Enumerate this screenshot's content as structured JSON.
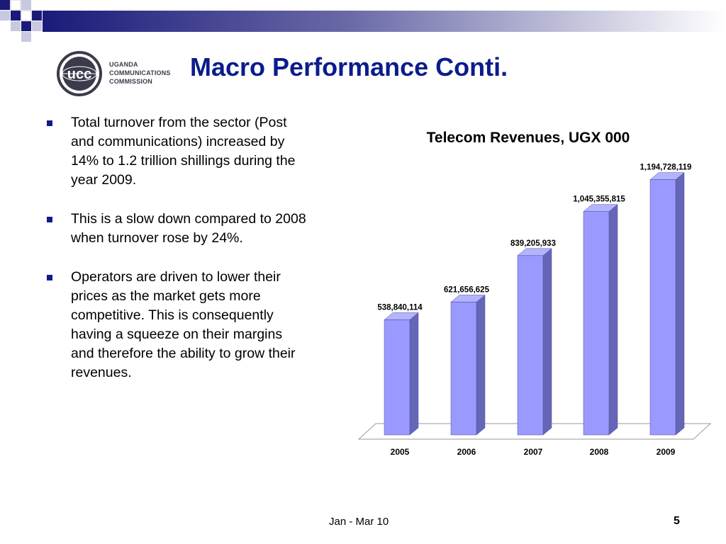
{
  "slide": {
    "title": "Macro Performance Conti.",
    "logo": {
      "mark": "ucc",
      "line1": "UGANDA",
      "line2": "COMMUNICATIONS",
      "line3": "COMMISSION"
    },
    "bullets": [
      "Total turnover from the sector (Post and communications) increased by 14%  to 1.2 trillion shillings during the year 2009.",
      "This is a slow down compared to 2008 when turnover rose by 24%.",
      "Operators are driven  to lower their prices as the market gets more competitive. This is consequently having a squeeze on their margins and therefore the ability to grow their revenues."
    ],
    "footer": {
      "date": "Jan - Mar 10",
      "page": "5"
    }
  },
  "colors": {
    "title": "#0b1c8c",
    "bar_front": "#9999ff",
    "bar_side": "#6666b8",
    "bar_top": "#b3b3ff",
    "bullet": "#0b1c8c"
  },
  "chart_data": {
    "type": "bar",
    "title": "Telecom Revenues, UGX 000",
    "categories": [
      "2005",
      "2006",
      "2007",
      "2008",
      "2009"
    ],
    "values": [
      538840114,
      621656625,
      839205933,
      1045355815,
      1194728119
    ],
    "data_labels": [
      "538,840,114",
      "621,656,625",
      "839,205,933",
      "1,045,355,815",
      "1,194,728,119"
    ],
    "ylim": [
      0,
      1200000000
    ],
    "grid": false,
    "legend": "none",
    "style": "3d-column"
  }
}
